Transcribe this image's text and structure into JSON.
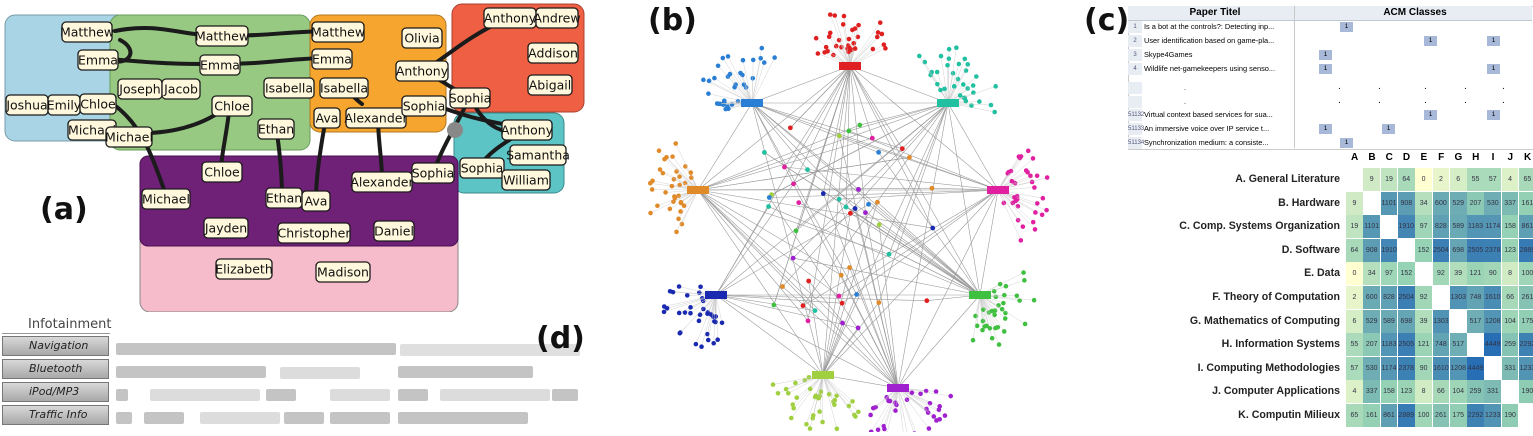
{
  "panel_a": {
    "label": "(a)",
    "names": [
      "Matthew",
      "Emma",
      "Joseph",
      "Jacob",
      "Chloe",
      "Joshua",
      "Emily",
      "Chloe",
      "Michael",
      "Michael",
      "Matthew",
      "Emma",
      "Isabella",
      "Isabella",
      "Ethan",
      "Ava",
      "Alexander",
      "Olivia",
      "Anthony",
      "Anthony",
      "Andrew",
      "Addison",
      "Abigail",
      "Sophia",
      "Sophia",
      "Anthony",
      "Samantha",
      "Sophia",
      "William",
      "Matthew",
      "Emma",
      "Chloe",
      "Ethan",
      "Ava",
      "Alexander",
      "Sophia",
      "Michael",
      "Jayden",
      "Christopher",
      "Daniel",
      "Elizabeth",
      "Madison"
    ],
    "colors": {
      "blue": "#a8d4e6",
      "green": "#97c982",
      "orange": "#f6a52e",
      "red": "#ef5f43",
      "teal": "#5cc4c4",
      "purple": "#6f2077",
      "pink": "#f6bccb"
    }
  },
  "panel_b": {
    "label": "(b)",
    "hub_colors": [
      "#e02020",
      "#2a7fd4",
      "#20c0a0",
      "#e08a2a",
      "#e020a0",
      "#1a2ab0",
      "#40c040",
      "#a0d040",
      "#a020d0"
    ]
  },
  "panel_c": {
    "label": "(c)",
    "table": {
      "col_title": "Paper Titel",
      "col_classes": "ACM Classes",
      "rows": [
        {
          "num": "1",
          "title": "Is a bot at the controls?: Detecting inp..."
        },
        {
          "num": "2",
          "title": "User identification based on game-pla..."
        },
        {
          "num": "3",
          "title": "Skype4Games"
        },
        {
          "num": "4",
          "title": "Wildlife net-gamekeepers using senso..."
        },
        {
          "num": "",
          "title": "."
        },
        {
          "num": "",
          "title": "."
        },
        {
          "num": "51132",
          "title": "Virtual context based services for sua..."
        },
        {
          "num": "51133",
          "title": "An immersive voice over IP service t..."
        },
        {
          "num": "51134",
          "title": "Synchronization medium: a consiste..."
        }
      ],
      "one": "1"
    },
    "matrix": {
      "cols": [
        "A",
        "B",
        "C",
        "D",
        "E",
        "F",
        "G",
        "H",
        "I",
        "J",
        "K"
      ],
      "rows": [
        "A. General Literature",
        "B. Hardware",
        "C. Comp. Systems Organization",
        "D. Software",
        "E. Data",
        "F. Theory of Computation",
        "G. Mathematics of Computing",
        "H. Information Systems",
        "I. Computing Methodologies",
        "J. Computer Applications",
        "K. Computin Milieux"
      ],
      "values": [
        [
          null,
          9,
          19,
          64,
          0,
          2,
          6,
          55,
          57,
          4,
          65
        ],
        [
          9,
          null,
          1101,
          908,
          34,
          600,
          529,
          207,
          530,
          337,
          161
        ],
        [
          19,
          1101,
          null,
          1910,
          97,
          828,
          589,
          1183,
          1174,
          158,
          861
        ],
        [
          64,
          908,
          1910,
          null,
          152,
          2504,
          698,
          2505,
          2378,
          123,
          2889
        ],
        [
          0,
          34,
          97,
          152,
          null,
          92,
          39,
          121,
          90,
          8,
          100
        ],
        [
          2,
          600,
          828,
          2504,
          92,
          null,
          1303,
          748,
          1610,
          66,
          261
        ],
        [
          6,
          529,
          589,
          698,
          39,
          1303,
          null,
          517,
          1208,
          104,
          175
        ],
        [
          55,
          207,
          1183,
          2505,
          121,
          748,
          517,
          null,
          4449,
          259,
          2292
        ],
        [
          57,
          530,
          1174,
          2378,
          90,
          1610,
          1208,
          4449,
          null,
          331,
          1233
        ],
        [
          4,
          337,
          158,
          123,
          8,
          66,
          104,
          259,
          331,
          null,
          190
        ],
        [
          65,
          161,
          861,
          2889,
          100,
          261,
          175,
          2292,
          1233,
          190,
          null
        ]
      ]
    }
  },
  "panel_d": {
    "label": "(d)",
    "title": "Infotainment",
    "items": [
      "Navigation",
      "Bluetooth",
      "iPod/MP3",
      "Traffic Info"
    ]
  }
}
